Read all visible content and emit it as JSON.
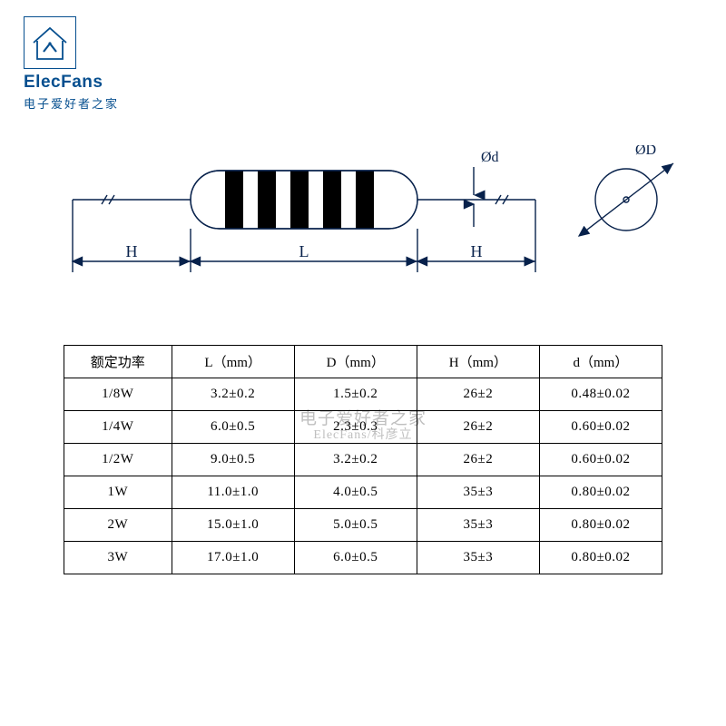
{
  "logo": {
    "title_en": "ElecFans",
    "title_cn": "电子爱好者之家",
    "border_color": "#064f8f",
    "text_color": "#064f8f"
  },
  "watermark": {
    "line1": "电子爱好者之家",
    "line2": "ElecFans/科彦立",
    "color": "#bfbfbf"
  },
  "diagram": {
    "line_color": "#07214b",
    "body_fill": "#ffffff",
    "band_color": "#000000",
    "label_H": "H",
    "label_L": "L",
    "label_phi_d": "Ød",
    "label_phi_D": "ØD"
  },
  "table": {
    "border_color": "#000000",
    "font_size_pt": 11,
    "columns": [
      "额定功率",
      "L（mm）",
      "D（mm）",
      "H（mm）",
      "d（mm）"
    ],
    "rows": [
      [
        "1/8W",
        "3.2±0.2",
        "1.5±0.2",
        "26±2",
        "0.48±0.02"
      ],
      [
        "1/4W",
        "6.0±0.5",
        "2.3±0.3",
        "26±2",
        "0.60±0.02"
      ],
      [
        "1/2W",
        "9.0±0.5",
        "3.2±0.2",
        "26±2",
        "0.60±0.02"
      ],
      [
        "1W",
        "11.0±1.0",
        "4.0±0.5",
        "35±3",
        "0.80±0.02"
      ],
      [
        "2W",
        "15.0±1.0",
        "5.0±0.5",
        "35±3",
        "0.80±0.02"
      ],
      [
        "3W",
        "17.0±1.0",
        "6.0±0.5",
        "35±3",
        "0.80±0.02"
      ]
    ]
  }
}
